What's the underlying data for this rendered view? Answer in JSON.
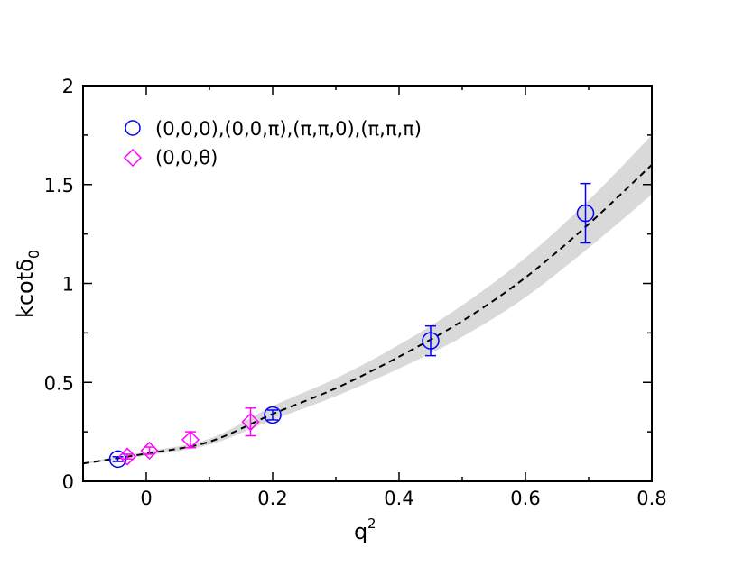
{
  "chart_data": {
    "type": "scatter",
    "title": "",
    "xlabel": {
      "base": "q",
      "sup": "2"
    },
    "ylabel": {
      "base": "kcotδ",
      "sub": "0"
    },
    "xlim": [
      -0.1,
      0.8
    ],
    "ylim": [
      0,
      2
    ],
    "x_ticks": [
      0,
      0.2,
      0.4,
      0.6,
      0.8
    ],
    "x_tick_labels": [
      "0",
      "0.2",
      "0.4",
      "0.6",
      "0.8"
    ],
    "y_ticks": [
      0,
      0.5,
      1,
      1.5,
      2
    ],
    "y_tick_labels": [
      "0",
      "0.5",
      "1",
      "1.5",
      "2"
    ],
    "grid": false,
    "legend_position": "top-left",
    "series": [
      {
        "name": "(0,0,0),(0,0,π),(π,π,0),(π,π,π)",
        "marker": "circle",
        "color": "#0000ff",
        "points": [
          {
            "x": -0.045,
            "y": 0.112,
            "err": 0.012
          },
          {
            "x": 0.2,
            "y": 0.335,
            "err": 0.025
          },
          {
            "x": 0.45,
            "y": 0.71,
            "err": 0.075
          },
          {
            "x": 0.695,
            "y": 1.355,
            "err": 0.15
          }
        ]
      },
      {
        "name": "(0,0,θ)",
        "marker": "diamond",
        "color": "#ff00ff",
        "points": [
          {
            "x": -0.03,
            "y": 0.125,
            "err": 0.012
          },
          {
            "x": 0.005,
            "y": 0.155,
            "err": 0.018
          },
          {
            "x": 0.07,
            "y": 0.21,
            "err": 0.04
          },
          {
            "x": 0.165,
            "y": 0.3,
            "err": 0.07
          }
        ]
      }
    ],
    "fit": {
      "name": "fit",
      "style": "dashed",
      "color": "#000000",
      "band_color": "#d9d9d9",
      "points": [
        {
          "x": -0.1,
          "y": 0.09,
          "lo": 0.085,
          "hi": 0.095
        },
        {
          "x": 0.0,
          "y": 0.14,
          "lo": 0.13,
          "hi": 0.15
        },
        {
          "x": 0.1,
          "y": 0.2,
          "lo": 0.185,
          "hi": 0.215
        },
        {
          "x": 0.2,
          "y": 0.34,
          "lo": 0.31,
          "hi": 0.38
        },
        {
          "x": 0.3,
          "y": 0.47,
          "lo": 0.43,
          "hi": 0.52
        },
        {
          "x": 0.4,
          "y": 0.63,
          "lo": 0.57,
          "hi": 0.69
        },
        {
          "x": 0.5,
          "y": 0.81,
          "lo": 0.73,
          "hi": 0.89
        },
        {
          "x": 0.6,
          "y": 1.03,
          "lo": 0.93,
          "hi": 1.13
        },
        {
          "x": 0.7,
          "y": 1.3,
          "lo": 1.18,
          "hi": 1.42
        },
        {
          "x": 0.8,
          "y": 1.6,
          "lo": 1.45,
          "hi": 1.75
        }
      ]
    }
  }
}
